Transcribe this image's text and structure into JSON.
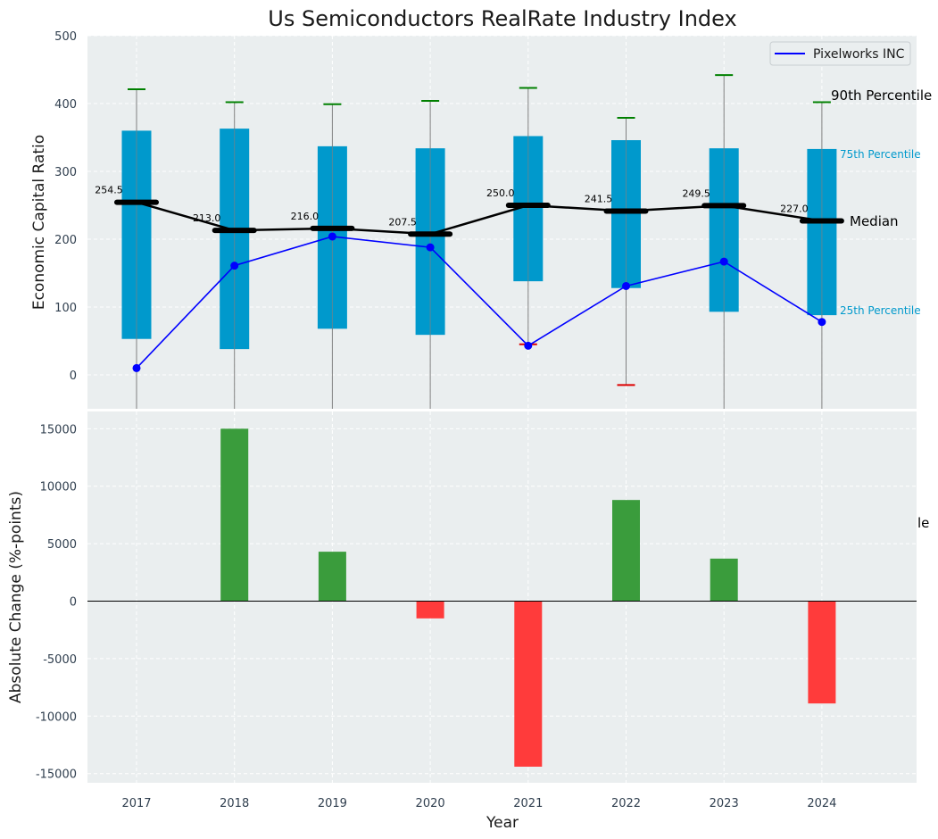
{
  "title": "Us Semiconductors RealRate Industry Index",
  "colors": {
    "panel_bg": "#eaeeef",
    "box_fill": "#0099cc",
    "whisker_top": "#008000",
    "whisker_bottom": "#dd0000",
    "median_line": "#000000",
    "company_line": "#0000ff",
    "bar_positive": "#3a9c3c",
    "bar_negative": "#ff3b3b",
    "percentile_75_label": "#0099cc",
    "percentile_25_label": "#0099cc"
  },
  "chart_data": [
    {
      "type": "box",
      "ylabel": "Economic Capital Ratio",
      "ylim": [
        -50,
        500
      ],
      "yticks": [
        0,
        100,
        200,
        300,
        400,
        500
      ],
      "categories": [
        "2017",
        "2018",
        "2019",
        "2020",
        "2021",
        "2022",
        "2023",
        "2024"
      ],
      "p10": [
        -50,
        -50,
        -50,
        -50,
        45,
        -15,
        -50,
        -50
      ],
      "p25": [
        53,
        38,
        68,
        59,
        138,
        128,
        93,
        88
      ],
      "median": [
        254.5,
        213.0,
        216.0,
        207.5,
        250.0,
        241.5,
        249.5,
        227.0
      ],
      "median_labels": [
        "254.5",
        "213.0",
        "216.0",
        "207.5",
        "250.0",
        "241.5",
        "249.5",
        "227.0"
      ],
      "p75": [
        360,
        363,
        337,
        334,
        352,
        346,
        334,
        333
      ],
      "p90": [
        421,
        402,
        399,
        404,
        423,
        379,
        442,
        402
      ],
      "series": [
        {
          "name": "Pixelworks INC",
          "values": [
            10,
            161,
            204,
            188,
            43,
            131,
            167,
            78
          ]
        }
      ],
      "legend": "top-right",
      "grid": true,
      "annotations": {
        "p90": "90th Percentile",
        "p75": "75th Percentile",
        "median": "Median",
        "p25": "25th Percentile"
      }
    },
    {
      "type": "bar",
      "xlabel": "Year",
      "ylabel": "Absolute Change (%-points)",
      "ylim": [
        -15800,
        16500
      ],
      "yticks": [
        -15000,
        -10000,
        -5000,
        0,
        5000,
        10000,
        15000
      ],
      "categories": [
        "2017",
        "2018",
        "2019",
        "2020",
        "2021",
        "2022",
        "2023",
        "2024"
      ],
      "values": [
        0,
        15000,
        4300,
        -1500,
        -14400,
        8800,
        3700,
        -8900
      ],
      "grid": true,
      "stray_label": "le"
    }
  ]
}
